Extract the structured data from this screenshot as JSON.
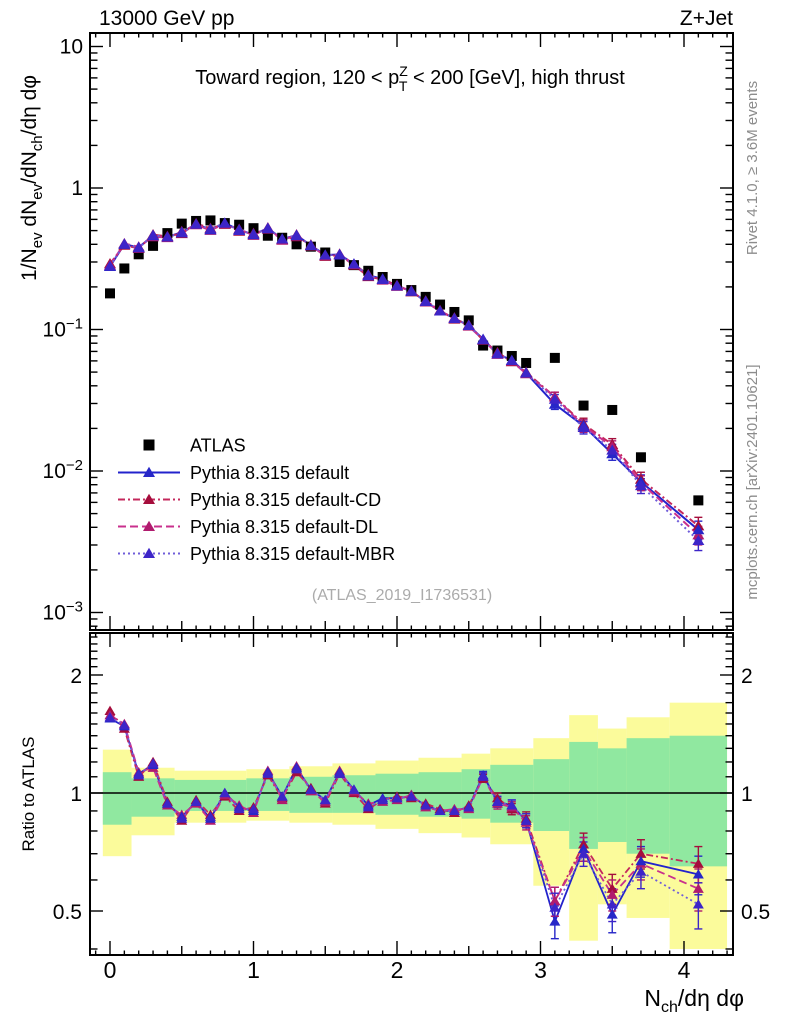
{
  "header": {
    "left": "13000 GeV pp",
    "right": "Z+Jet"
  },
  "side_texts": {
    "rivet": "Rivet 4.1.0, ≥ 3.6M events",
    "mcplots": "mcplots.cern.ch [arXiv:2401.10621]"
  },
  "watermark": "(ATLAS_2019_I1736531)",
  "chart_data": {
    "type": "line",
    "title_segments": [
      {
        "t": "Toward region, 120 < "
      },
      {
        "t": "p",
        "sup": "Z",
        "sub": "T",
        "stack": true
      },
      {
        "t": " < 200 [GeV], high thrust"
      }
    ],
    "xlabel_segments": [
      {
        "t": "N",
        "sub": "ch"
      },
      {
        "t": "/dη dφ"
      }
    ],
    "ylabel_segments": [
      {
        "t": "1/N",
        "sub": "ev"
      },
      {
        "t": " dN",
        "sub": "ev"
      },
      {
        "t": "/dN",
        "sub": "ch"
      },
      {
        "t": "/dη dφ"
      }
    ],
    "ratio_ylabel": "Ratio to ATLAS",
    "legend_note": "markers: filled triangles for MC, filled square for data",
    "xlim": [
      -0.14,
      4.34
    ],
    "main_ylim": [
      0.00075,
      12.4
    ],
    "ratio_ylim": [
      0.386,
      2.56
    ],
    "xticks": [
      {
        "v": 0,
        "t": "0"
      },
      {
        "v": 1,
        "t": "1"
      },
      {
        "v": 2,
        "t": "2"
      },
      {
        "v": 3,
        "t": "3"
      },
      {
        "v": 4,
        "t": "4"
      }
    ],
    "yticks_main": [
      {
        "v": 10,
        "base": "10"
      },
      {
        "v": 1,
        "base": "1"
      },
      {
        "v": 0.1,
        "base": "10",
        "sup": "−1"
      },
      {
        "v": 0.01,
        "base": "10",
        "sup": "−2"
      },
      {
        "v": 0.001,
        "base": "10",
        "sup": "−3"
      }
    ],
    "yticks_ratio": [
      {
        "v": 2,
        "t": "2"
      },
      {
        "v": 1,
        "t": "1"
      },
      {
        "v": 0.5,
        "t": "0.5"
      }
    ],
    "x": [
      0.0,
      0.1,
      0.2,
      0.3,
      0.4,
      0.5,
      0.6,
      0.7,
      0.8,
      0.9,
      1.0,
      1.1,
      1.2,
      1.3,
      1.4,
      1.5,
      1.6,
      1.7,
      1.8,
      1.9,
      2.0,
      2.1,
      2.2,
      2.3,
      2.4,
      2.5,
      2.6,
      2.7,
      2.8,
      2.9,
      3.1,
      3.3,
      3.5,
      3.7,
      4.1
    ],
    "atlas": {
      "name": "ATLAS",
      "marker": "square",
      "color": "#000000",
      "values": [
        0.18,
        0.27,
        0.34,
        0.39,
        0.48,
        0.56,
        0.585,
        0.59,
        0.565,
        0.55,
        0.52,
        0.46,
        0.445,
        0.4,
        0.385,
        0.35,
        0.3,
        0.285,
        0.26,
        0.235,
        0.21,
        0.19,
        0.17,
        0.15,
        0.133,
        0.116,
        0.077,
        0.071,
        0.065,
        0.058,
        0.063,
        0.029,
        0.027,
        0.0125,
        0.0062
      ]
    },
    "mc_values_note": "main-panel MC value[i] = atlas.values[i] * ratio[i]",
    "mc_series": [
      {
        "name": "Pythia 8.315 default",
        "line_color": "#2323cc",
        "marker_color": "#2727c8",
        "dash": [],
        "ratio": [
          1.55,
          1.48,
          1.12,
          1.18,
          0.94,
          0.87,
          0.95,
          0.86,
          1.0,
          0.92,
          0.9,
          1.13,
          0.98,
          1.16,
          1.02,
          0.96,
          1.13,
          1.02,
          0.93,
          0.97,
          0.97,
          0.98,
          0.93,
          0.9,
          0.9,
          0.92,
          1.11,
          0.95,
          0.93,
          0.85,
          0.47,
          0.72,
          0.49,
          0.67,
          0.62
        ]
      },
      {
        "name": "Pythia 8.315 default-CD",
        "line_color": "#c4285c",
        "marker_color": "#a50d3c",
        "dash": [
          7,
          3,
          2,
          3
        ],
        "ratio": [
          1.62,
          1.46,
          1.1,
          1.2,
          0.95,
          0.85,
          0.96,
          0.88,
          0.98,
          0.9,
          0.92,
          1.11,
          0.97,
          1.13,
          1.03,
          0.94,
          1.12,
          1.0,
          0.91,
          0.96,
          0.98,
          0.97,
          0.94,
          0.91,
          0.89,
          0.93,
          1.09,
          0.97,
          0.91,
          0.86,
          0.53,
          0.74,
          0.57,
          0.7,
          0.66
        ]
      },
      {
        "name": "Pythia 8.315 default-DL",
        "line_color": "#c9308d",
        "marker_color": "#b01b6e",
        "dash": [
          8,
          4
        ],
        "ratio": [
          1.58,
          1.5,
          1.13,
          1.16,
          0.93,
          0.88,
          0.94,
          0.85,
          0.99,
          0.93,
          0.89,
          1.14,
          0.96,
          1.17,
          1.01,
          0.95,
          1.14,
          1.01,
          0.94,
          0.95,
          0.96,
          0.99,
          0.92,
          0.9,
          0.91,
          0.91,
          1.1,
          0.94,
          0.92,
          0.84,
          0.53,
          0.72,
          0.55,
          0.66,
          0.57
        ]
      },
      {
        "name": "Pythia 8.315 default-MBR",
        "line_color": "#6f5cd9",
        "marker_color": "#3d25c8",
        "dash": [
          2,
          3
        ],
        "ratio": [
          1.56,
          1.49,
          1.11,
          1.19,
          0.94,
          0.86,
          0.95,
          0.87,
          1.0,
          0.91,
          0.91,
          1.12,
          0.98,
          1.15,
          1.02,
          0.96,
          1.12,
          1.02,
          0.92,
          0.96,
          0.97,
          0.98,
          0.93,
          0.9,
          0.9,
          0.92,
          1.1,
          0.95,
          0.93,
          0.85,
          0.51,
          0.7,
          0.52,
          0.63,
          0.52
        ]
      }
    ],
    "ratio_err": [
      0,
      0,
      0,
      0,
      0,
      0,
      0,
      0,
      0,
      0,
      0,
      0,
      0,
      0,
      0,
      0,
      0,
      0,
      0,
      0,
      0,
      0,
      0,
      0,
      0,
      0,
      0.025,
      0.03,
      0.03,
      0.035,
      0.045,
      0.05,
      0.05,
      0.06,
      0.07
    ],
    "mc_err_frac": [
      0,
      0,
      0,
      0,
      0,
      0,
      0,
      0,
      0,
      0,
      0,
      0,
      0,
      0,
      0,
      0,
      0,
      0,
      0,
      0,
      0,
      0,
      0,
      0,
      0,
      0,
      0,
      0,
      0,
      0,
      0.08,
      0.1,
      0.1,
      0.12,
      0.15
    ],
    "bands": {
      "yellow_color": "#fbfb9b",
      "green_color": "#90e8a0",
      "yellow": [
        [
          -0.05,
          0.15,
          0.69,
          1.29
        ],
        [
          0.15,
          0.45,
          0.78,
          1.16
        ],
        [
          0.45,
          0.95,
          0.84,
          1.14
        ],
        [
          0.95,
          1.25,
          0.85,
          1.15
        ],
        [
          1.25,
          1.55,
          0.84,
          1.17
        ],
        [
          1.55,
          1.85,
          0.83,
          1.19
        ],
        [
          1.85,
          2.15,
          0.81,
          1.21
        ],
        [
          2.15,
          2.45,
          0.79,
          1.23
        ],
        [
          2.45,
          2.65,
          0.77,
          1.26
        ],
        [
          2.65,
          2.95,
          0.74,
          1.3
        ],
        [
          2.95,
          3.2,
          0.58,
          1.38
        ],
        [
          3.2,
          3.4,
          0.42,
          1.58
        ],
        [
          3.4,
          3.6,
          0.52,
          1.46
        ],
        [
          3.6,
          3.9,
          0.48,
          1.56
        ],
        [
          3.9,
          4.3,
          0.4,
          1.7
        ]
      ],
      "green": [
        [
          -0.05,
          0.15,
          0.83,
          1.13
        ],
        [
          0.15,
          0.45,
          0.87,
          1.09
        ],
        [
          0.45,
          0.95,
          0.9,
          1.08
        ],
        [
          0.95,
          1.25,
          0.9,
          1.09
        ],
        [
          1.25,
          1.55,
          0.89,
          1.1
        ],
        [
          1.55,
          1.85,
          0.89,
          1.11
        ],
        [
          1.85,
          2.15,
          0.88,
          1.12
        ],
        [
          2.15,
          2.45,
          0.87,
          1.13
        ],
        [
          2.45,
          2.65,
          0.86,
          1.15
        ],
        [
          2.65,
          2.95,
          0.84,
          1.18
        ],
        [
          2.95,
          3.2,
          0.8,
          1.22
        ],
        [
          3.2,
          3.4,
          0.72,
          1.35
        ],
        [
          3.4,
          3.6,
          0.75,
          1.3
        ],
        [
          3.6,
          3.9,
          0.7,
          1.38
        ],
        [
          3.9,
          4.3,
          0.65,
          1.4
        ]
      ]
    }
  }
}
